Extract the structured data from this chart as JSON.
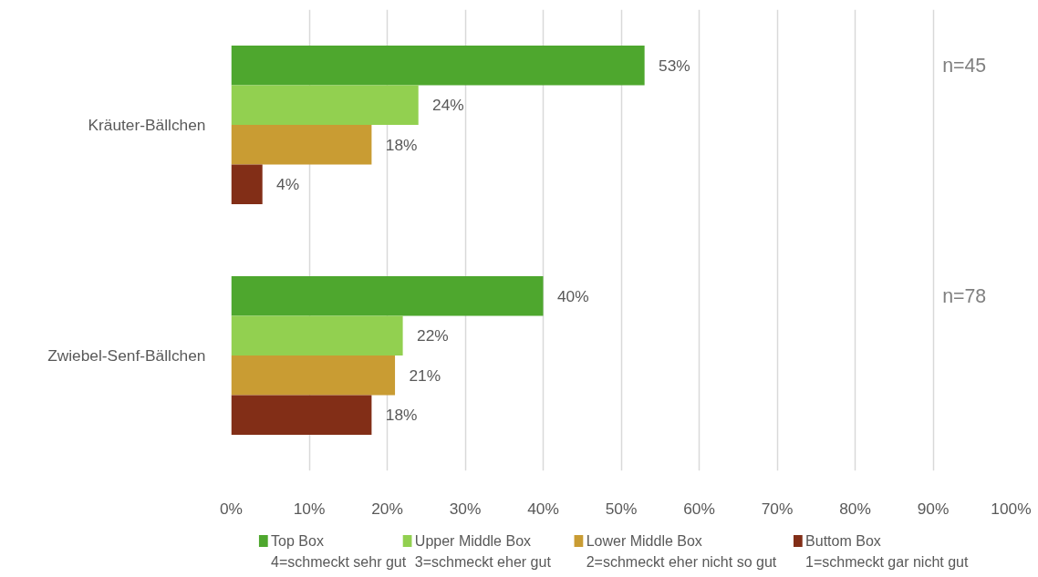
{
  "chart_data": {
    "type": "bar",
    "orientation": "horizontal",
    "categories": [
      "Kräuter-Bällchen",
      "Zwiebel-Senf-Bällchen"
    ],
    "series": [
      {
        "name": "Top Box\n4=schmeckt sehr gut",
        "color": "#4ea72e",
        "values": [
          53,
          40
        ],
        "value_labels": [
          "53%",
          "40%"
        ]
      },
      {
        "name": "Upper Middle Box\n3=schmeckt eher gut",
        "color": "#92d050",
        "values": [
          24,
          22
        ],
        "value_labels": [
          "24%",
          "22%"
        ]
      },
      {
        "name": "Lower Middle Box\n2=schmeckt eher nicht so gut",
        "color": "#c99c33",
        "values": [
          18,
          21
        ],
        "value_labels": [
          "18%",
          "21%"
        ]
      },
      {
        "name": "Buttom Box\n1=schmeckt gar nicht gut",
        "color": "#822e17",
        "values": [
          4,
          18
        ],
        "value_labels": [
          "4%",
          "18%"
        ]
      }
    ],
    "xlim": [
      0,
      100
    ],
    "xticks": [
      {
        "value": 0,
        "label": "0%"
      },
      {
        "value": 10,
        "label": "10%"
      },
      {
        "value": 20,
        "label": "20%"
      },
      {
        "value": 30,
        "label": "30%"
      },
      {
        "value": 40,
        "label": "40%"
      },
      {
        "value": 50,
        "label": "50%"
      },
      {
        "value": 60,
        "label": "60%"
      },
      {
        "value": 70,
        "label": "70%"
      },
      {
        "value": 80,
        "label": "80%"
      },
      {
        "value": 90,
        "label": "90%"
      },
      {
        "value": 100,
        "label": "100%"
      }
    ],
    "annotations": [
      "n=45",
      "n=78"
    ],
    "grid": "x",
    "legend": "bottom"
  }
}
